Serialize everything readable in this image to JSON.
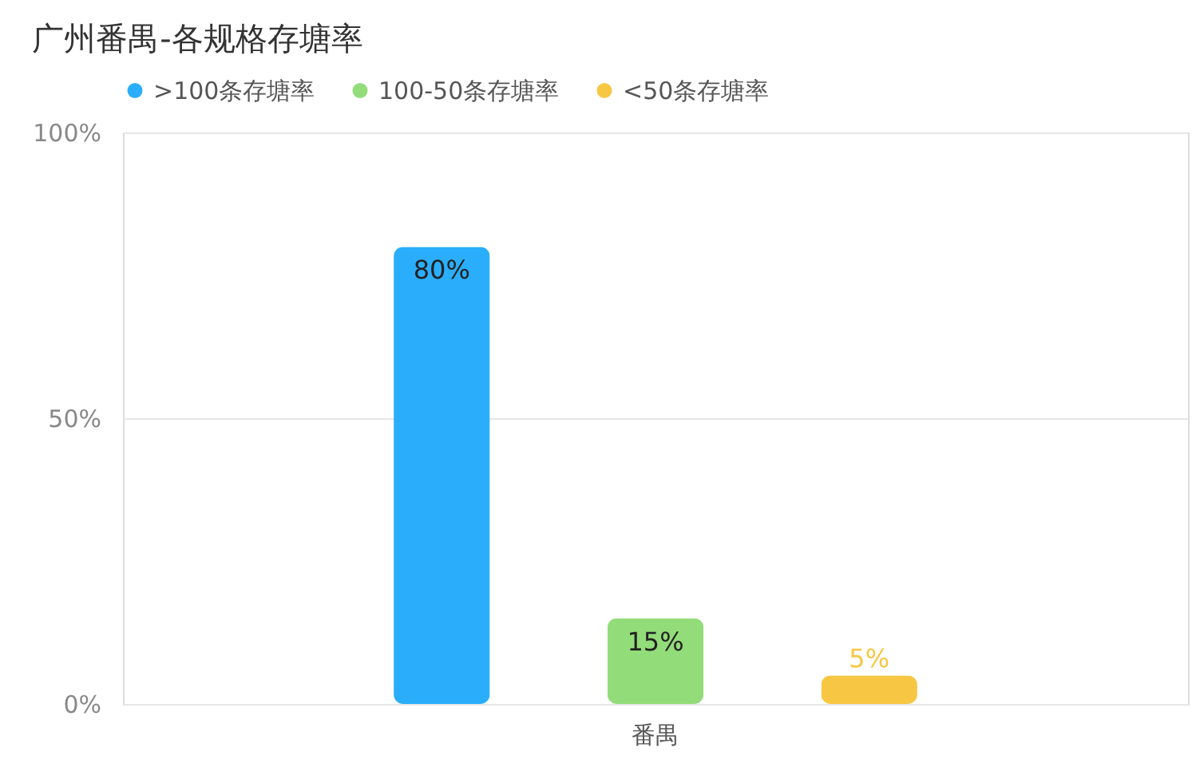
{
  "chart_data": {
    "type": "bar",
    "title": "广州番禺-各规格存塘率",
    "categories": [
      "番禺"
    ],
    "series": [
      {
        "name": ">100条存塘率",
        "color": "#2aaefc",
        "values": [
          80
        ],
        "value_labels": [
          "80%"
        ]
      },
      {
        "name": "100-50条存塘率",
        "color": "#93dc7a",
        "values": [
          15
        ],
        "value_labels": [
          "15%"
        ]
      },
      {
        "name": "<50条存塘率",
        "color": "#f7c744",
        "values": [
          5
        ],
        "value_labels": [
          "5%"
        ]
      }
    ],
    "ylim": [
      0,
      100
    ],
    "yticks": [
      {
        "value": 0,
        "label": "0%"
      },
      {
        "value": 50,
        "label": "50%"
      },
      {
        "value": 100,
        "label": "100%"
      }
    ],
    "grid": "y",
    "legend": "top left"
  }
}
